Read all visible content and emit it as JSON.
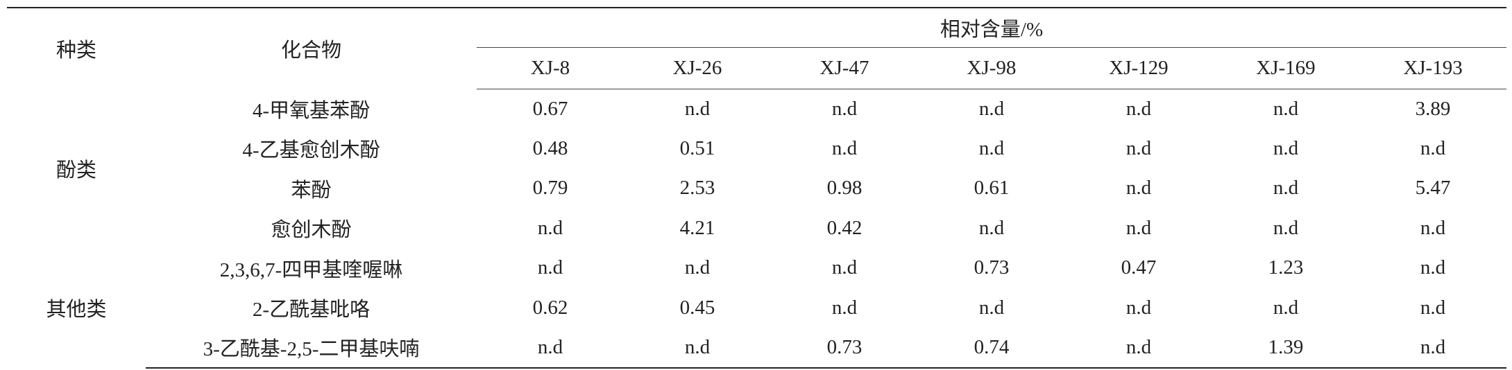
{
  "table": {
    "header": {
      "group": "种类",
      "compound": "化合物",
      "span": "相对含量/%",
      "samples": [
        "XJ-8",
        "XJ-26",
        "XJ-47",
        "XJ-98",
        "XJ-129",
        "XJ-169",
        "XJ-193"
      ]
    },
    "groups": [
      {
        "name": "酚类",
        "rows": [
          {
            "compound": "4-甲氧基苯酚",
            "values": [
              0.67,
              "n.d",
              "n.d",
              "n.d",
              "n.d",
              "n.d",
              3.89
            ]
          },
          {
            "compound": "4-乙基愈创木酚",
            "values": [
              0.48,
              0.51,
              "n.d",
              "n.d",
              "n.d",
              "n.d",
              "n.d"
            ]
          },
          {
            "compound": "苯酚",
            "values": [
              0.79,
              2.53,
              0.98,
              0.61,
              "n.d",
              "n.d",
              5.47
            ]
          },
          {
            "compound": "愈创木酚",
            "values": [
              "n.d",
              4.21,
              0.42,
              "n.d",
              "n.d",
              "n.d",
              "n.d"
            ]
          }
        ]
      },
      {
        "name": "其他类",
        "rows": [
          {
            "compound": "2,3,6,7-四甲基喹喔啉",
            "values": [
              "n.d",
              "n.d",
              "n.d",
              0.73,
              0.47,
              1.23,
              "n.d"
            ]
          },
          {
            "compound": "2-乙酰基吡咯",
            "values": [
              0.62,
              0.45,
              "n.d",
              "n.d",
              "n.d",
              "n.d",
              "n.d"
            ]
          },
          {
            "compound": "3-乙酰基-2,5-二甲基呋喃",
            "values": [
              "n.d",
              "n.d",
              0.73,
              0.74,
              "n.d",
              1.39,
              "n.d"
            ]
          }
        ]
      }
    ]
  }
}
